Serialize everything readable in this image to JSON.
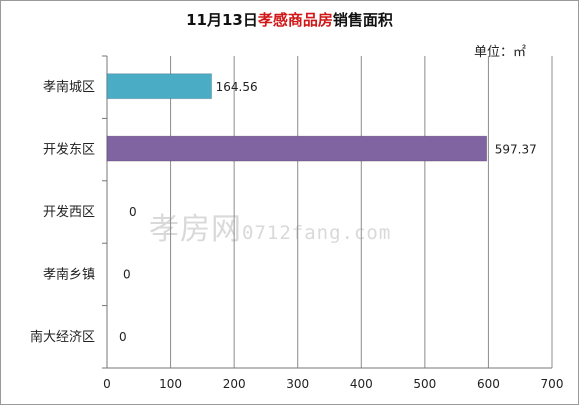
{
  "title": {
    "prefix": "11月13日",
    "highlight": "孝感商品房",
    "suffix": "销售面积"
  },
  "unit": "单位：㎡",
  "watermark": {
    "brand": "孝房网",
    "url": "0712fang.com"
  },
  "colors": {
    "bar_城区": "#4bacc6",
    "bar_东区": "#8064a2",
    "grid": "#8c8c8c",
    "title_highlight": "#d01818"
  },
  "chart_data": {
    "type": "bar",
    "orientation": "horizontal",
    "categories": [
      "孝南城区",
      "开发东区",
      "开发西区",
      "孝南乡镇",
      "南大经济区"
    ],
    "values": [
      164.56,
      597.37,
      0,
      0,
      0
    ],
    "data_labels": [
      "164.56",
      "597.37",
      "0",
      "0",
      "0"
    ],
    "xlim": [
      0,
      700
    ],
    "xticks": [
      0,
      100,
      200,
      300,
      400,
      500,
      600,
      700
    ],
    "grid": true,
    "legend": "none"
  }
}
